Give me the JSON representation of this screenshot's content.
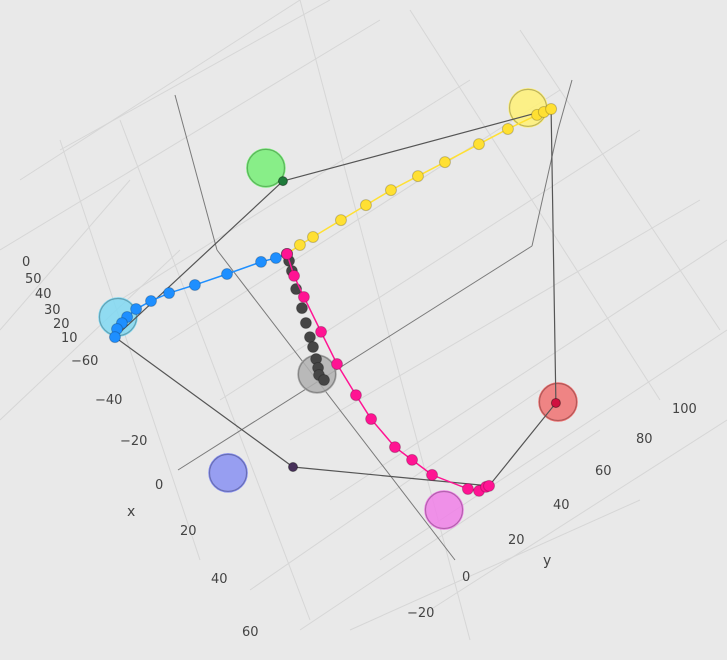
{
  "chart_data": {
    "type": "scatter3d",
    "title": "",
    "axes": {
      "x": {
        "title": "x",
        "ticks": [
          "−60",
          "−40",
          "−20",
          "0",
          "20",
          "40",
          "60"
        ]
      },
      "y": {
        "title": "y",
        "ticks": [
          "−20",
          "0",
          "20",
          "40",
          "60",
          "80",
          "100"
        ]
      },
      "z": {
        "title": "",
        "ticks": [
          "0",
          "50",
          "40",
          "30",
          "20",
          "10"
        ]
      }
    },
    "grid": true,
    "legend": "none",
    "background": "#e9e9e9",
    "series": [
      {
        "color": "#ffe033",
        "mode": "lines+markers",
        "points": [
          [
            0,
            0
          ],
          [
            0.2,
            6.3
          ],
          [
            0.8,
            12.4
          ],
          [
            2.1,
            25.4
          ],
          [
            3.3,
            37.0
          ],
          [
            4.5,
            48.6
          ],
          [
            6.5,
            60.6
          ],
          [
            8.5,
            72.6
          ],
          [
            10.9,
            87.8
          ],
          [
            13.0,
            100.7
          ],
          [
            15.5,
            113.4
          ],
          [
            16.2,
            116.3
          ],
          [
            17.0,
            119.3
          ]
        ]
      },
      {
        "color": "#1e8fff",
        "mode": "lines+markers",
        "points": [
          [
            0,
            0
          ],
          [
            -1.4,
            -4.5
          ],
          [
            -3.7,
            -10.2
          ],
          [
            -8.0,
            -24.0
          ],
          [
            -12.2,
            -36.9
          ],
          [
            -15.8,
            -47.1
          ],
          [
            -17.6,
            -54.8
          ],
          [
            -18.6,
            -61.5
          ],
          [
            -18.2,
            -66.3
          ],
          [
            -17.5,
            -69.4
          ],
          [
            -16.8,
            -72.4
          ],
          [
            -14.7,
            -75.0
          ]
        ]
      },
      {
        "color": "#454545",
        "mode": "markers",
        "points": [
          [
            0,
            0
          ],
          [
            2.7,
            -1.0
          ],
          [
            6.6,
            -2.5
          ],
          [
            13.4,
            -5.5
          ],
          [
            20.9,
            -8.2
          ],
          [
            26.6,
            -10.5
          ],
          [
            32.1,
            -12.6
          ],
          [
            36.0,
            -14.0
          ],
          [
            40.6,
            -15.9
          ],
          [
            43.9,
            -17.4
          ],
          [
            46.4,
            -18.8
          ],
          [
            49.2,
            -18.4
          ]
        ]
      },
      {
        "color": "#ff1493",
        "mode": "lines+markers",
        "points": [
          [
            0,
            0
          ],
          [
            8.7,
            -3.0
          ],
          [
            17.8,
            -4.9
          ],
          [
            33.1,
            -7.8
          ],
          [
            47.2,
            -10.4
          ],
          [
            61.7,
            -11.8
          ],
          [
            73.0,
            -12.7
          ],
          [
            87.7,
            -11.8
          ],
          [
            95.9,
            -9.4
          ],
          [
            105.5,
            -6.6
          ],
          [
            118.6,
            1.5
          ],
          [
            121.9,
            4.6
          ],
          [
            122.3,
            7.8
          ],
          [
            122.7,
            9.0
          ]
        ]
      }
    ],
    "large_markers": [
      {
        "color": "#77ee77",
        "point": [
          -32.6,
          13.9
        ]
      },
      {
        "color": "#fff176",
        "point": [
          11.1,
          112.2
        ]
      },
      {
        "color": "#f07272",
        "point": [
          112.4,
          51.2
        ]
      },
      {
        "color": "#f080e8",
        "point": [
          119.6,
          -11.2
        ]
      },
      {
        "color": "#8890f2",
        "point": [
          55.9,
          -71.4
        ]
      },
      {
        "color": "#80d8f2",
        "point": [
          -20.4,
          -69.2
        ]
      },
      {
        "color": "#b0b0b0",
        "point": [
          45.6,
          -19.2
        ]
      }
    ],
    "vertex_markers": [
      {
        "color": "#1f7a3a",
        "point": [
          -24.3,
          16.2
        ]
      },
      {
        "color": "#d01040",
        "point": [
          112.2,
          50.3
        ]
      },
      {
        "color": "#47305a",
        "point": [
          69.6,
          -49.2
        ]
      }
    ],
    "loop": {
      "color": "#555555",
      "points": [
        [
          -24.3,
          16.2
        ],
        [
          17.0,
          119.3
        ],
        [
          112.2,
          50.3
        ],
        [
          122.7,
          9.0
        ],
        [
          69.6,
          -49.2
        ],
        [
          -14.7,
          -75.0
        ],
        [
          -24.3,
          16.2
        ]
      ]
    }
  }
}
